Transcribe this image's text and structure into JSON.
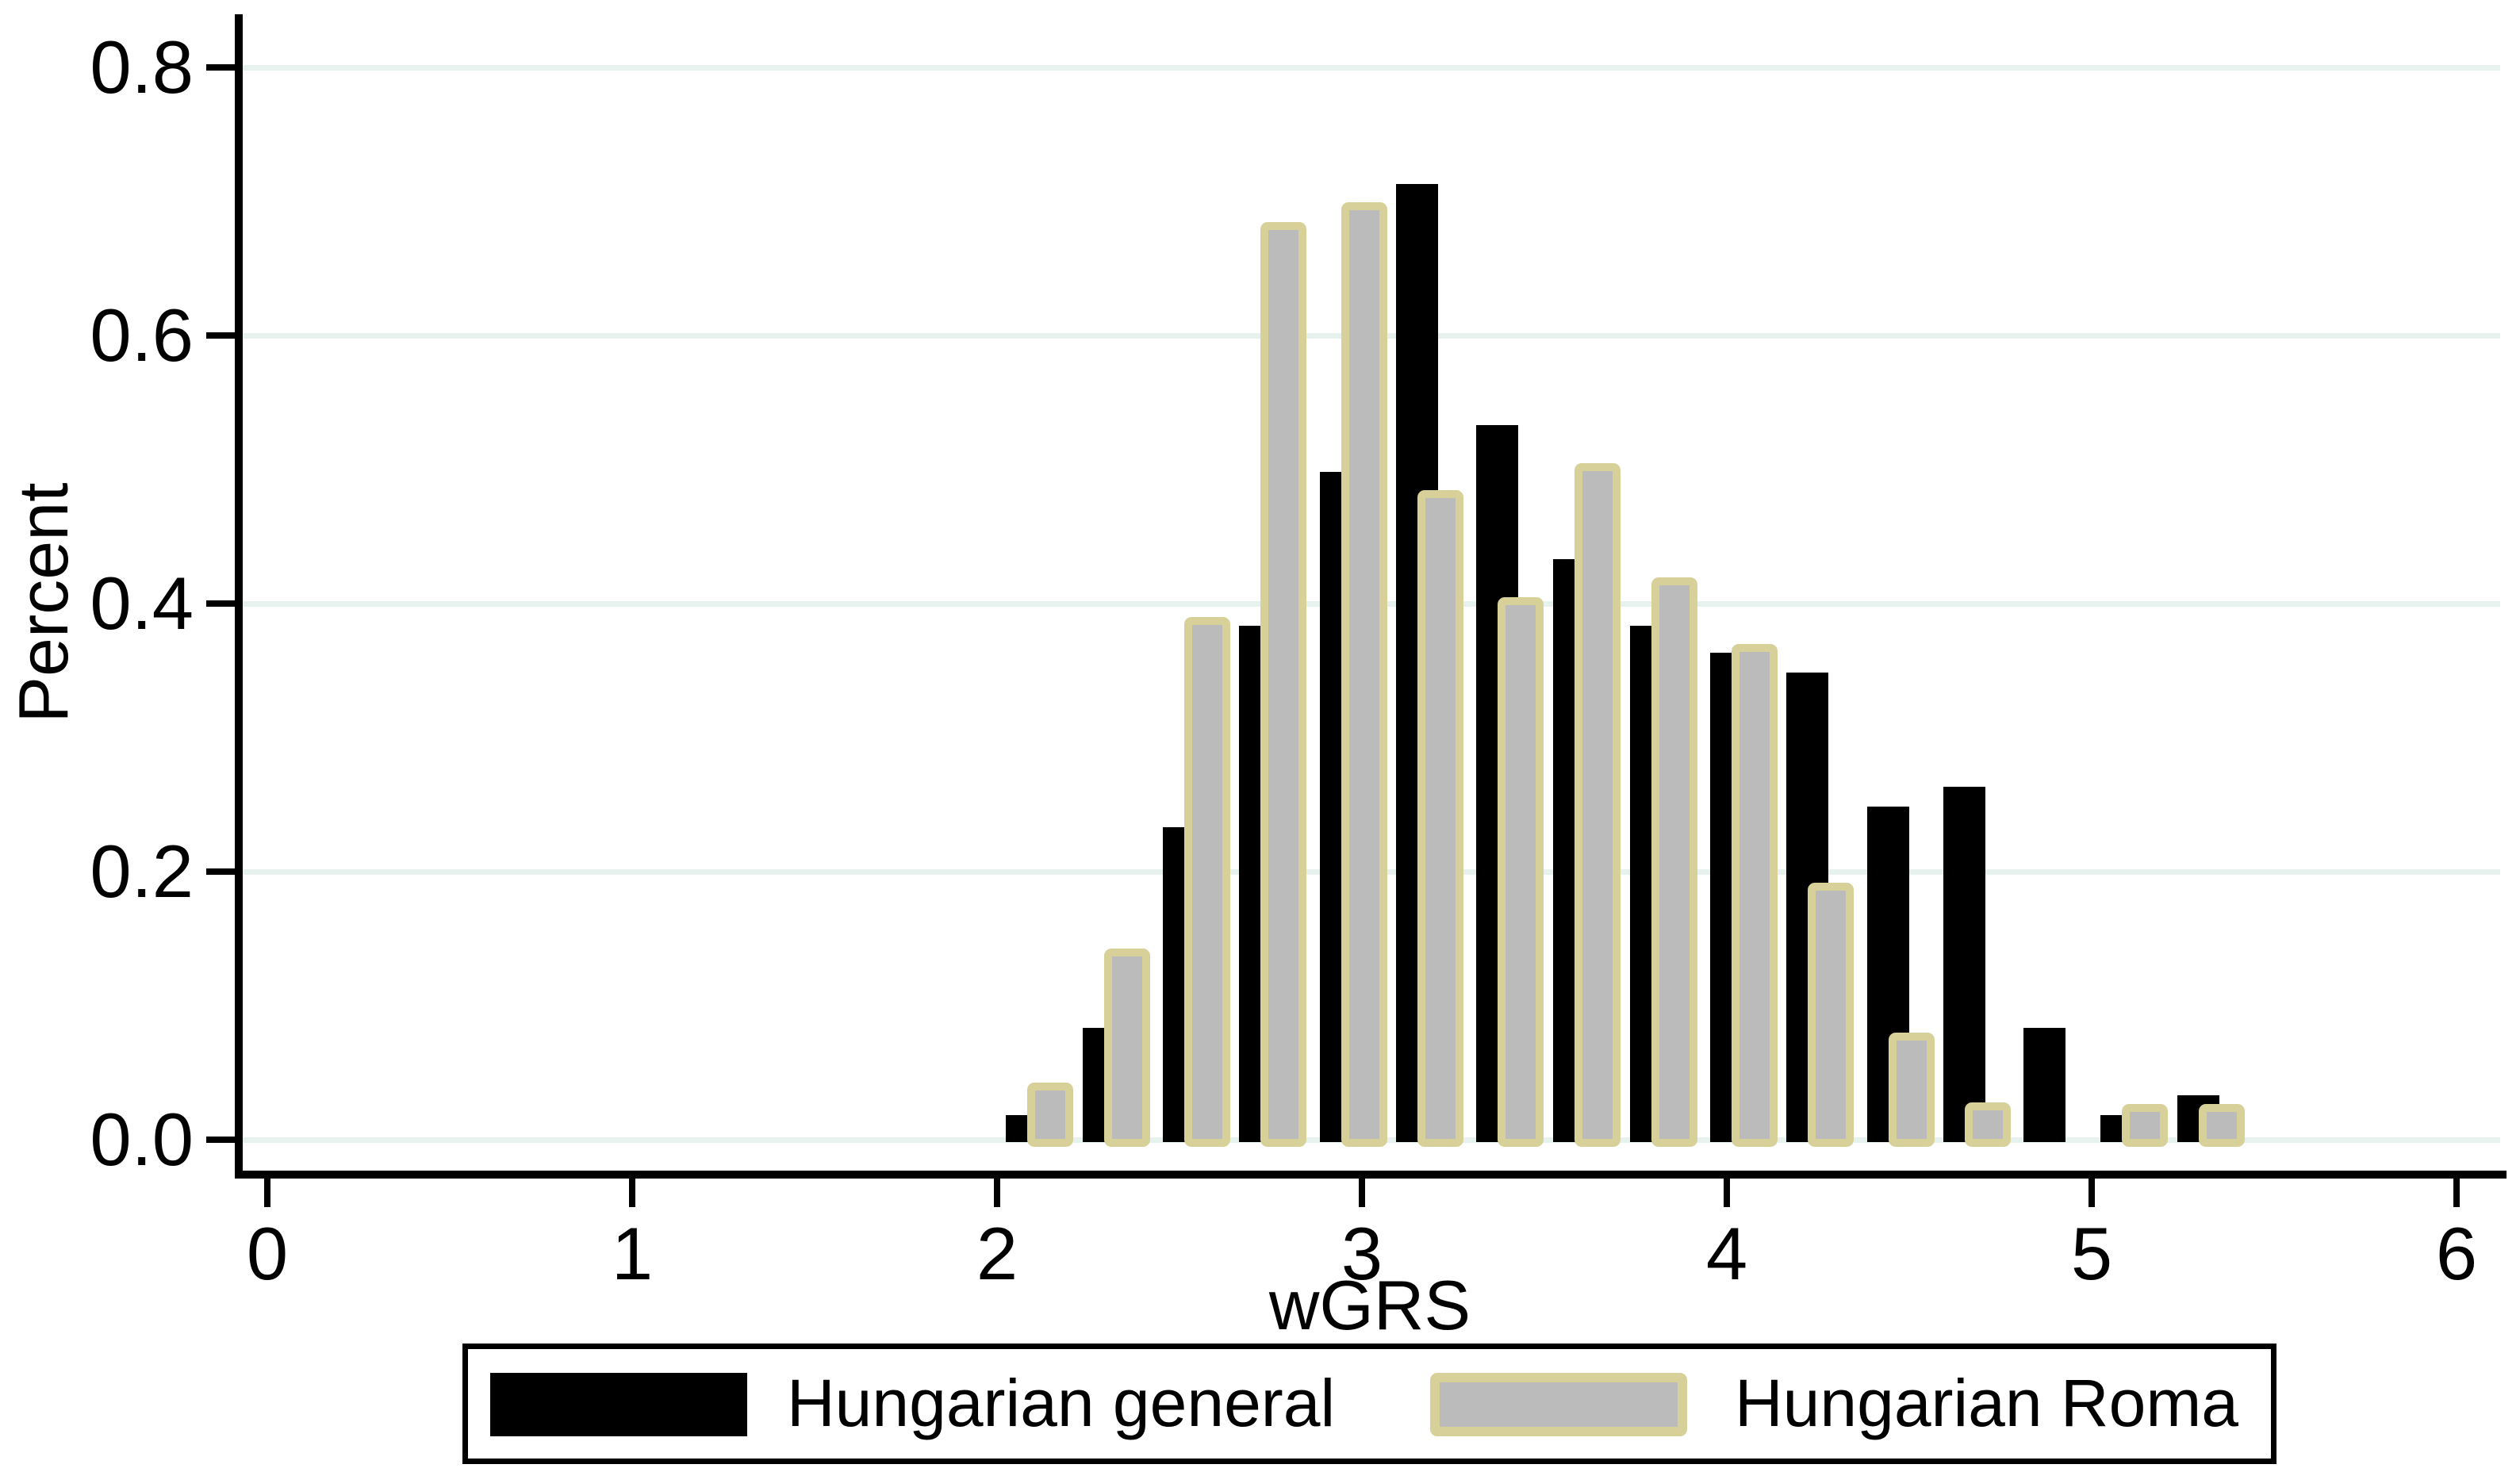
{
  "chart_data": {
    "type": "bar",
    "subtype": "overlaid-histogram",
    "title": "",
    "xlabel": "wGRS",
    "ylabel": "Percent",
    "xlim": [
      0,
      6
    ],
    "ylim": [
      0,
      0.8
    ],
    "x_tick_labels": [
      "0",
      "1",
      "2",
      "3",
      "4",
      "5",
      "6"
    ],
    "y_tick_labels": [
      "0.0",
      "0.2",
      "0.4",
      "0.6",
      "0.8"
    ],
    "grid": "horizontal",
    "gridline_color": "#e7f1ee",
    "legend_position": "bottom",
    "bin_width": 0.21,
    "categories": [
      2.1,
      2.31,
      2.53,
      2.74,
      2.96,
      3.17,
      3.39,
      3.6,
      3.81,
      4.03,
      4.24,
      4.46,
      4.67,
      4.89,
      5.1,
      5.31
    ],
    "series": [
      {
        "name": "Hungarian general",
        "color": "#000000",
        "values": [
          0.02,
          0.085,
          0.235,
          0.385,
          0.5,
          0.715,
          0.535,
          0.435,
          0.385,
          0.365,
          0.35,
          0.25,
          0.265,
          0.085,
          0.02,
          0.035
        ]
      },
      {
        "name": "Hungarian Roma",
        "color": "#bbbbbb",
        "outline_color": "#d8d099",
        "values": [
          0.048,
          0.148,
          0.395,
          0.69,
          0.705,
          0.49,
          0.41,
          0.51,
          0.425,
          0.375,
          0.197,
          0.085,
          0.033,
          null,
          0.032,
          0.032
        ]
      }
    ]
  },
  "colors": {
    "background": "#ffffff",
    "axis": "#000000",
    "gridline": "#e7f1ee",
    "bar_black": "#000000",
    "bar_gray_fill": "#bbbbbb",
    "bar_gray_outline": "#d8d099",
    "legend_border": "#000000"
  }
}
